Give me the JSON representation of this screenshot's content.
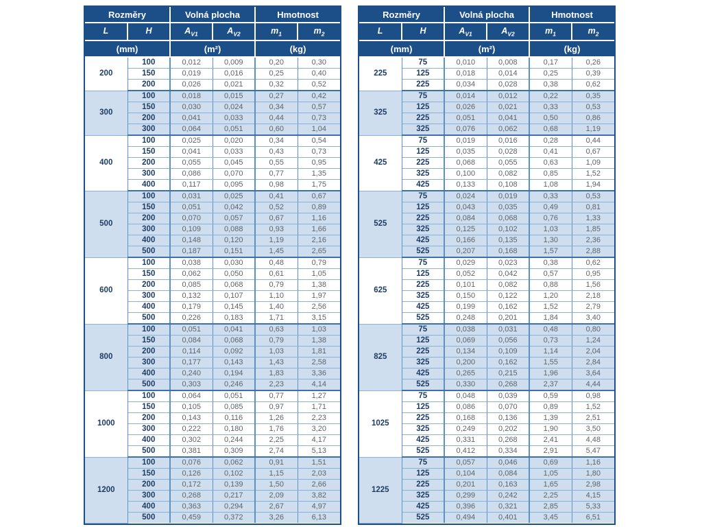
{
  "columns": {
    "group_labels": [
      "Rozměry",
      "Volná plocha",
      "Hmotnost"
    ],
    "symbols": [
      {
        "base": "L",
        "sub": ""
      },
      {
        "base": "H",
        "sub": ""
      },
      {
        "base": "A",
        "sub": "V1"
      },
      {
        "base": "A",
        "sub": "V2"
      },
      {
        "base": "m",
        "sub": "1"
      },
      {
        "base": "m",
        "sub": "2"
      }
    ],
    "units": [
      "(mm)",
      "(m²)",
      "(kg)"
    ]
  },
  "colors": {
    "header_bg": "#1c4e87",
    "outer_border": "#1c4e87",
    "group_row_bg": "#cfdeee",
    "column_line": "#5c91c6",
    "row_line": "#8cb0d4",
    "group_line": "#3b70ab",
    "dimension_text": "#1e3c64",
    "value_text": "#5d6369"
  },
  "tables": [
    {
      "name": "left",
      "groups": [
        {
          "L": "200",
          "rows": [
            [
              "100",
              "0,012",
              "0,009",
              "0,20",
              "0,30"
            ],
            [
              "150",
              "0,019",
              "0,016",
              "0,25",
              "0,40"
            ],
            [
              "200",
              "0,026",
              "0,021",
              "0,32",
              "0,52"
            ]
          ]
        },
        {
          "L": "300",
          "rows": [
            [
              "100",
              "0,018",
              "0,015",
              "0,27",
              "0,42"
            ],
            [
              "150",
              "0,030",
              "0,024",
              "0,34",
              "0,57"
            ],
            [
              "200",
              "0,041",
              "0,033",
              "0,44",
              "0,73"
            ],
            [
              "300",
              "0,064",
              "0,051",
              "0,60",
              "1,04"
            ]
          ]
        },
        {
          "L": "400",
          "rows": [
            [
              "100",
              "0,025",
              "0,020",
              "0,34",
              "0,54"
            ],
            [
              "150",
              "0,041",
              "0,033",
              "0,43",
              "0,73"
            ],
            [
              "200",
              "0,055",
              "0,045",
              "0,55",
              "0,95"
            ],
            [
              "300",
              "0,086",
              "0,070",
              "0,77",
              "1,35"
            ],
            [
              "400",
              "0,117",
              "0,095",
              "0,98",
              "1,75"
            ]
          ]
        },
        {
          "L": "500",
          "rows": [
            [
              "100",
              "0,031",
              "0,025",
              "0,41",
              "0,67"
            ],
            [
              "150",
              "0,051",
              "0,042",
              "0,52",
              "0,89"
            ],
            [
              "200",
              "0,070",
              "0,057",
              "0,67",
              "1,16"
            ],
            [
              "300",
              "0,109",
              "0,088",
              "0,93",
              "1,66"
            ],
            [
              "400",
              "0,148",
              "0,120",
              "1,19",
              "2,16"
            ],
            [
              "500",
              "0,187",
              "0,151",
              "1,45",
              "2,65"
            ]
          ]
        },
        {
          "L": "600",
          "rows": [
            [
              "100",
              "0,038",
              "0,030",
              "0,48",
              "0,79"
            ],
            [
              "150",
              "0,062",
              "0,050",
              "0,61",
              "1,05"
            ],
            [
              "200",
              "0,085",
              "0,068",
              "0,79",
              "1,38"
            ],
            [
              "300",
              "0,132",
              "0,107",
              "1,10",
              "1,97"
            ],
            [
              "400",
              "0,179",
              "0,145",
              "1,40",
              "2,56"
            ],
            [
              "500",
              "0,226",
              "0,183",
              "1,71",
              "3,15"
            ]
          ]
        },
        {
          "L": "800",
          "rows": [
            [
              "100",
              "0,051",
              "0,041",
              "0,63",
              "1,03"
            ],
            [
              "150",
              "0,084",
              "0,068",
              "0,79",
              "1,38"
            ],
            [
              "200",
              "0,114",
              "0,092",
              "1,03",
              "1,81"
            ],
            [
              "300",
              "0,177",
              "0,143",
              "1,43",
              "2,58"
            ],
            [
              "400",
              "0,240",
              "0,194",
              "1,83",
              "3,36"
            ],
            [
              "500",
              "0,303",
              "0,246",
              "2,23",
              "4,14"
            ]
          ]
        },
        {
          "L": "1000",
          "rows": [
            [
              "100",
              "0,064",
              "0,051",
              "0,77",
              "1,27"
            ],
            [
              "150",
              "0,105",
              "0,085",
              "0,97",
              "1,71"
            ],
            [
              "200",
              "0,143",
              "0,116",
              "1,26",
              "2,23"
            ],
            [
              "300",
              "0,222",
              "0,180",
              "1,76",
              "3,20"
            ],
            [
              "400",
              "0,302",
              "0,244",
              "2,25",
              "4,17"
            ],
            [
              "500",
              "0,381",
              "0,309",
              "2,74",
              "5,13"
            ]
          ]
        },
        {
          "L": "1200",
          "rows": [
            [
              "100",
              "0,076",
              "0,062",
              "0,91",
              "1,51"
            ],
            [
              "150",
              "0,126",
              "0,102",
              "1,15",
              "2,03"
            ],
            [
              "200",
              "0,172",
              "0,139",
              "1,50",
              "2,66"
            ],
            [
              "300",
              "0,268",
              "0,217",
              "2,09",
              "3,82"
            ],
            [
              "400",
              "0,363",
              "0,294",
              "2,67",
              "4,97"
            ],
            [
              "500",
              "0,459",
              "0,372",
              "3,26",
              "6,13"
            ]
          ]
        }
      ]
    },
    {
      "name": "right",
      "groups": [
        {
          "L": "225",
          "rows": [
            [
              "75",
              "0,010",
              "0,008",
              "0,17",
              "0,26"
            ],
            [
              "125",
              "0,018",
              "0,014",
              "0,25",
              "0,39"
            ],
            [
              "225",
              "0,034",
              "0,028",
              "0,38",
              "0,62"
            ]
          ]
        },
        {
          "L": "325",
          "rows": [
            [
              "75",
              "0,014",
              "0,012",
              "0,22",
              "0,35"
            ],
            [
              "125",
              "0,026",
              "0,021",
              "0,33",
              "0,53"
            ],
            [
              "225",
              "0,051",
              "0,041",
              "0,50",
              "0,86"
            ],
            [
              "325",
              "0,076",
              "0,062",
              "0,68",
              "1,19"
            ]
          ]
        },
        {
          "L": "425",
          "rows": [
            [
              "75",
              "0,019",
              "0,016",
              "0,28",
              "0,44"
            ],
            [
              "125",
              "0,035",
              "0,028",
              "0,41",
              "0,67"
            ],
            [
              "225",
              "0,068",
              "0,055",
              "0,63",
              "1,09"
            ],
            [
              "325",
              "0,100",
              "0,082",
              "0,85",
              "1,52"
            ],
            [
              "425",
              "0,133",
              "0,108",
              "1,08",
              "1,94"
            ]
          ]
        },
        {
          "L": "525",
          "rows": [
            [
              "75",
              "0,024",
              "0,019",
              "0,33",
              "0,53"
            ],
            [
              "125",
              "0,043",
              "0,035",
              "0,49",
              "0,81"
            ],
            [
              "225",
              "0,084",
              "0,068",
              "0,76",
              "1,33"
            ],
            [
              "325",
              "0,125",
              "0,102",
              "1,03",
              "1,85"
            ],
            [
              "425",
              "0,166",
              "0,135",
              "1,30",
              "2,36"
            ],
            [
              "525",
              "0,207",
              "0,168",
              "1,57",
              "2,88"
            ]
          ]
        },
        {
          "L": "625",
          "rows": [
            [
              "75",
              "0,029",
              "0,023",
              "0,38",
              "0,62"
            ],
            [
              "125",
              "0,052",
              "0,042",
              "0,57",
              "0,95"
            ],
            [
              "225",
              "0,101",
              "0,082",
              "0,88",
              "1,56"
            ],
            [
              "325",
              "0,150",
              "0,122",
              "1,20",
              "2,18"
            ],
            [
              "425",
              "0,199",
              "0,162",
              "1,52",
              "2,79"
            ],
            [
              "525",
              "0,248",
              "0,201",
              "1,84",
              "3,40"
            ]
          ]
        },
        {
          "L": "825",
          "rows": [
            [
              "75",
              "0,038",
              "0,031",
              "0,48",
              "0,80"
            ],
            [
              "125",
              "0,069",
              "0,056",
              "0,73",
              "1,24"
            ],
            [
              "225",
              "0,134",
              "0,109",
              "1,14",
              "2,04"
            ],
            [
              "325",
              "0,200",
              "0,162",
              "1,55",
              "2,84"
            ],
            [
              "425",
              "0,265",
              "0,215",
              "1,96",
              "3,64"
            ],
            [
              "525",
              "0,330",
              "0,268",
              "2,37",
              "4,44"
            ]
          ]
        },
        {
          "L": "1025",
          "rows": [
            [
              "75",
              "0,048",
              "0,039",
              "0,59",
              "0,98"
            ],
            [
              "125",
              "0,086",
              "0,070",
              "0,89",
              "1,52"
            ],
            [
              "225",
              "0,168",
              "0,136",
              "1,39",
              "2,51"
            ],
            [
              "325",
              "0,249",
              "0,202",
              "1,90",
              "3,50"
            ],
            [
              "425",
              "0,331",
              "0,268",
              "2,41",
              "4,48"
            ],
            [
              "525",
              "0,412",
              "0,334",
              "2,91",
              "5,47"
            ]
          ]
        },
        {
          "L": "1225",
          "rows": [
            [
              "75",
              "0,057",
              "0,046",
              "0,69",
              "1,16"
            ],
            [
              "125",
              "0,104",
              "0,084",
              "1,05",
              "1,80"
            ],
            [
              "225",
              "0,201",
              "0,163",
              "1,65",
              "2,98"
            ],
            [
              "325",
              "0,299",
              "0,242",
              "2,25",
              "4,15"
            ],
            [
              "425",
              "0,396",
              "0,321",
              "2,85",
              "5,33"
            ],
            [
              "525",
              "0,494",
              "0,401",
              "3,45",
              "6,51"
            ]
          ]
        }
      ]
    }
  ]
}
